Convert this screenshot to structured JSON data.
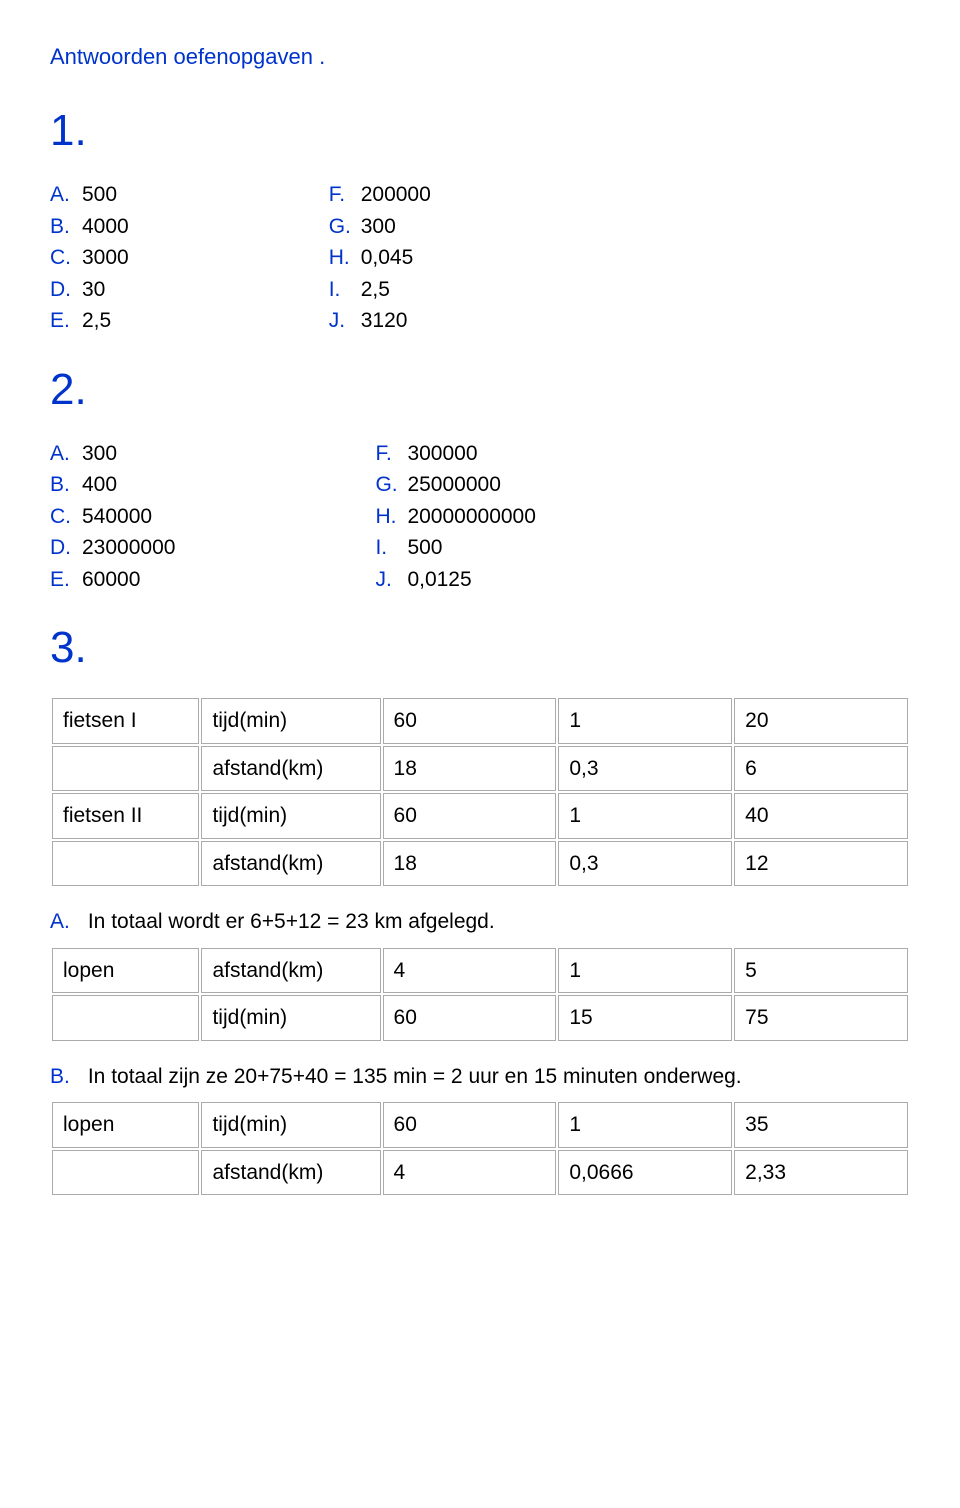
{
  "title": "Antwoorden oefenopgaven .",
  "sections": {
    "s1": {
      "num": "1.",
      "left": [
        {
          "l": "A.",
          "v": "500"
        },
        {
          "l": "B.",
          "v": "4000"
        },
        {
          "l": "C.",
          "v": "3000"
        },
        {
          "l": "D.",
          "v": "30"
        },
        {
          "l": "E.",
          "v": "2,5"
        }
      ],
      "right": [
        {
          "l": "F.",
          "v": "200000"
        },
        {
          "l": "G.",
          "v": "300"
        },
        {
          "l": "H.",
          "v": "0,045"
        },
        {
          "l": "I.",
          "v": "2,5"
        },
        {
          "l": "J.",
          "v": "3120"
        }
      ]
    },
    "s2": {
      "num": "2.",
      "left": [
        {
          "l": "A.",
          "v": "300"
        },
        {
          "l": "B.",
          "v": "400"
        },
        {
          "l": "C.",
          "v": "540000"
        },
        {
          "l": "D.",
          "v": "23000000"
        },
        {
          "l": "E.",
          "v": "60000"
        }
      ],
      "right": [
        {
          "l": "F.",
          "v": "300000"
        },
        {
          "l": "G.",
          "v": "25000000"
        },
        {
          "l": "H.",
          "v": "20000000000"
        },
        {
          "l": "I.",
          "v": "500"
        },
        {
          "l": "J.",
          "v": "0,0125"
        }
      ]
    },
    "s3": {
      "num": "3.",
      "table1": {
        "rows": [
          [
            "fietsen I",
            "tijd(min)",
            "60",
            "1",
            "20"
          ],
          [
            "",
            "afstand(km)",
            "18",
            "0,3",
            "6"
          ],
          [
            "fietsen II",
            "tijd(min)",
            "60",
            "1",
            "40"
          ],
          [
            "",
            "afstand(km)",
            "18",
            "0,3",
            "12"
          ]
        ]
      },
      "expl_a": {
        "l": "A.",
        "v": "In totaal wordt er 6+5+12 = 23 km afgelegd."
      },
      "table2": {
        "rows": [
          [
            "lopen",
            "afstand(km)",
            "4",
            "1",
            "5"
          ],
          [
            "",
            "tijd(min)",
            "60",
            "15",
            "75"
          ]
        ]
      },
      "expl_b": {
        "l": "B.",
        "v": "In totaal zijn ze 20+75+40 = 135 min = 2 uur en 15 minuten onderweg."
      },
      "table3": {
        "rows": [
          [
            "lopen",
            "tijd(min)",
            "60",
            "1",
            "35"
          ],
          [
            "",
            "afstand(km)",
            "4",
            "0,0666",
            "2,33"
          ]
        ]
      }
    }
  }
}
